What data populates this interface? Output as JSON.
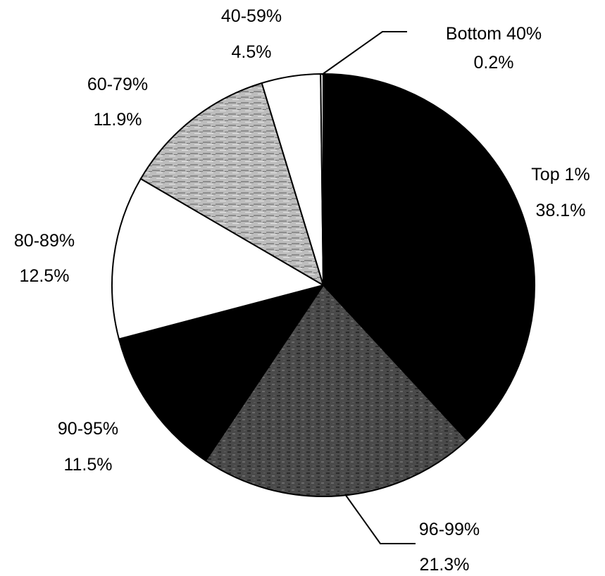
{
  "chart_data": {
    "type": "pie",
    "title": "",
    "legend": "none",
    "slices": [
      {
        "label": "Top 1%",
        "value_label": "38.1%",
        "value": 38.1,
        "color": "#000000",
        "pattern": "solid"
      },
      {
        "label": "96-99%",
        "value_label": "21.3%",
        "value": 21.3,
        "color": "#4a4a4a",
        "pattern": "mottled"
      },
      {
        "label": "90-95%",
        "value_label": "11.5%",
        "value": 11.5,
        "color": "#000000",
        "pattern": "solid"
      },
      {
        "label": "80-89%",
        "value_label": "12.5%",
        "value": 12.5,
        "color": "#ffffff",
        "pattern": "solid"
      },
      {
        "label": "60-79%",
        "value_label": "11.9%",
        "value": 11.9,
        "color": "#bdbdbd",
        "pattern": "streaked"
      },
      {
        "label": "40-59%",
        "value_label": "4.5%",
        "value": 4.5,
        "color": "#ffffff",
        "pattern": "solid"
      },
      {
        "label": "Bottom 40%",
        "value_label": "0.2%",
        "value": 0.2,
        "color": "#ffffff",
        "pattern": "solid"
      }
    ]
  }
}
